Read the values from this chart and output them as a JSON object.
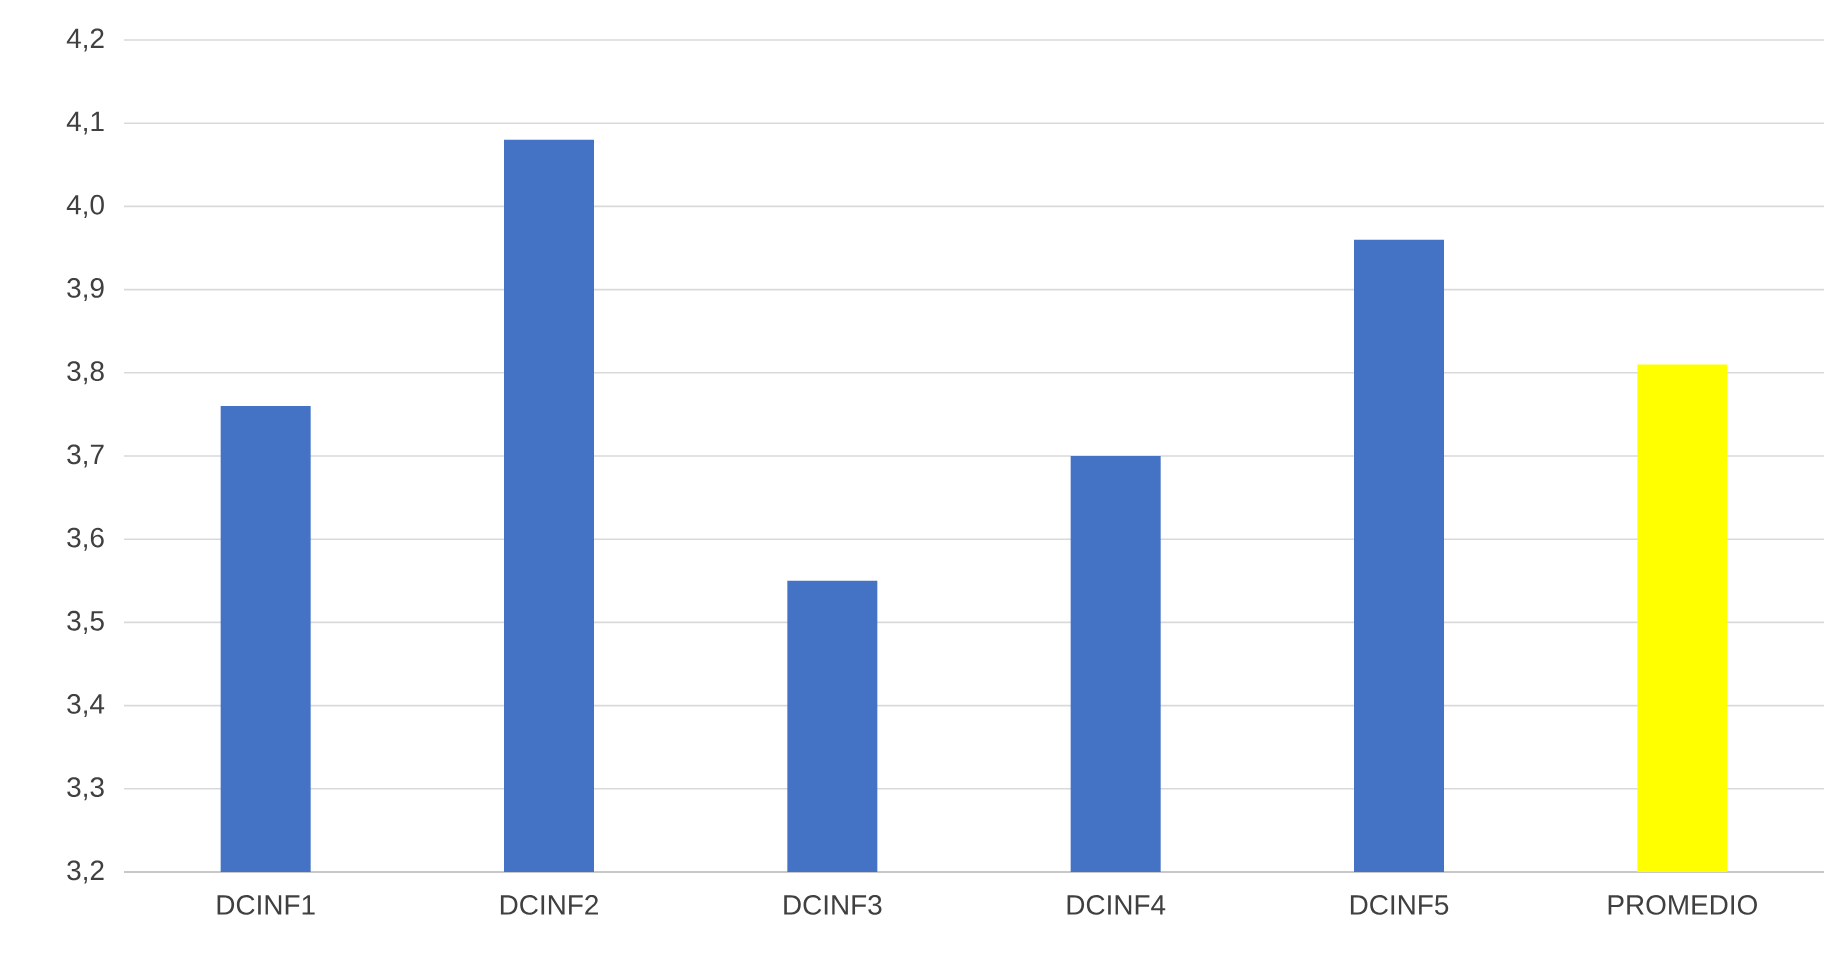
{
  "chart_data": {
    "type": "bar",
    "categories": [
      "DCINF1",
      "DCINF2",
      "DCINF3",
      "DCINF4",
      "DCINF5",
      "PROMEDIO"
    ],
    "values": [
      3.76,
      4.08,
      3.55,
      3.7,
      3.96,
      3.81
    ],
    "colors": [
      "#4472c4",
      "#4472c4",
      "#4472c4",
      "#4472c4",
      "#4472c4",
      "#ffff00"
    ],
    "ylim": [
      3.2,
      4.2
    ],
    "yticks": [
      {
        "value": 3.2,
        "label": "3,2"
      },
      {
        "value": 3.3,
        "label": "3,3"
      },
      {
        "value": 3.4,
        "label": "3,4"
      },
      {
        "value": 3.5,
        "label": "3,5"
      },
      {
        "value": 3.6,
        "label": "3,6"
      },
      {
        "value": 3.7,
        "label": "3,7"
      },
      {
        "value": 3.8,
        "label": "3,8"
      },
      {
        "value": 3.9,
        "label": "3,9"
      },
      {
        "value": 4.0,
        "label": "4,0"
      },
      {
        "value": 4.1,
        "label": "4,1"
      },
      {
        "value": 4.2,
        "label": "4,2"
      }
    ],
    "grid": "y"
  }
}
